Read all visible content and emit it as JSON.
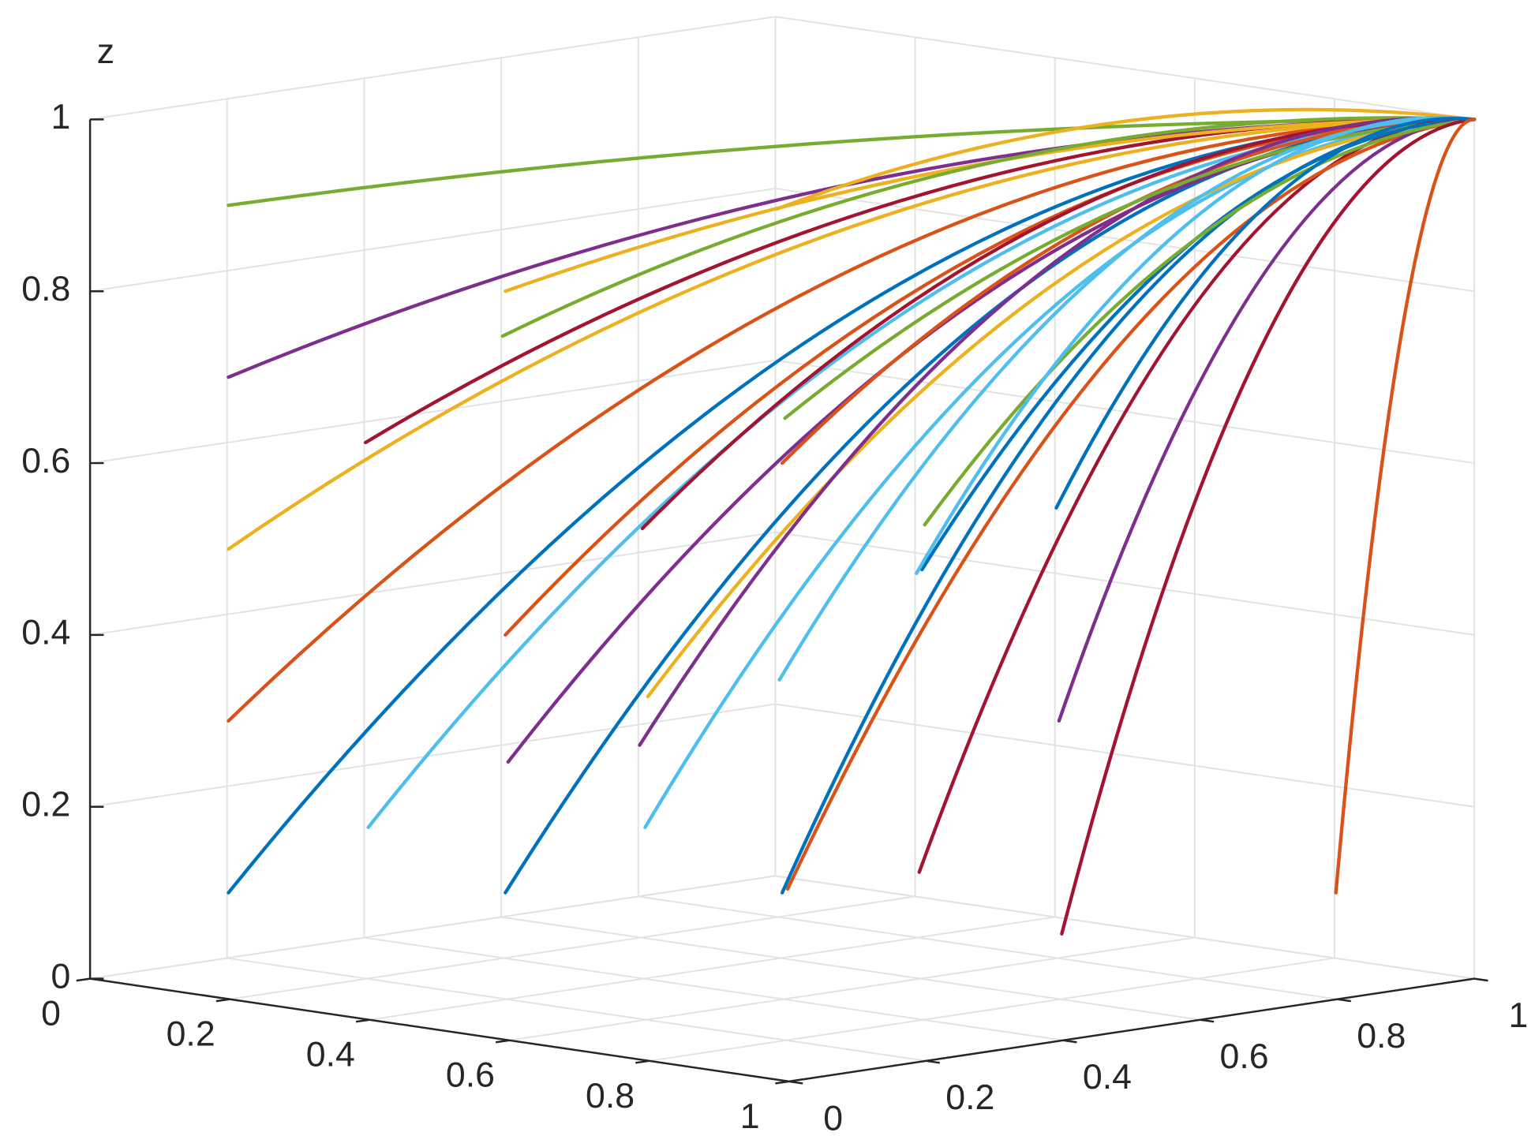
{
  "chart_data": {
    "type": "line3d",
    "zlabel": "z",
    "grid": true,
    "xlim": [
      0,
      1
    ],
    "ylim": [
      0,
      1
    ],
    "zlim": [
      0,
      1
    ],
    "xticks": [
      0,
      0.2,
      0.4,
      0.6,
      0.8,
      1
    ],
    "yticks": [
      0,
      0.2,
      0.4,
      0.6,
      0.8,
      1
    ],
    "zticks": [
      0,
      0.2,
      0.4,
      0.6,
      0.8,
      1
    ],
    "series": [
      {
        "color": "#0072BD",
        "x": [
          0.1,
          0.55,
          1
        ],
        "y": [
          0.1,
          0.55,
          1
        ],
        "z": [
          0.1,
          0.775,
          1
        ]
      },
      {
        "color": "#D95319",
        "x": [
          0.1,
          0.55,
          1
        ],
        "y": [
          0.1,
          0.55,
          1
        ],
        "z": [
          0.3,
          0.825,
          1
        ]
      },
      {
        "color": "#EDB120",
        "x": [
          0.1,
          0.55,
          1
        ],
        "y": [
          0.1,
          0.55,
          1
        ],
        "z": [
          0.5,
          0.875,
          1
        ]
      },
      {
        "color": "#7E2F8E",
        "x": [
          0.1,
          0.55,
          1
        ],
        "y": [
          0.1,
          0.55,
          1
        ],
        "z": [
          0.7,
          0.925,
          1
        ]
      },
      {
        "color": "#77AC30",
        "x": [
          0.1,
          0.55,
          1
        ],
        "y": [
          0.1,
          0.55,
          1
        ],
        "z": [
          0.9,
          0.975,
          1
        ]
      },
      {
        "color": "#4DBEEE",
        "x": [
          0.3,
          0.65,
          1
        ],
        "y": [
          0.1,
          0.55,
          1
        ],
        "z": [
          0.2,
          0.8,
          1
        ]
      },
      {
        "color": "#A2142F",
        "x": [
          0.1,
          0.55,
          1
        ],
        "y": [
          0.3,
          0.65,
          1
        ],
        "z": [
          0.6,
          0.9,
          1
        ]
      },
      {
        "color": "#0072BD",
        "x": [
          0.3,
          0.65,
          1
        ],
        "y": [
          0.3,
          0.65,
          1
        ],
        "z": [
          0.1,
          0.775,
          1
        ]
      },
      {
        "color": "#D95319",
        "x": [
          0.3,
          0.65,
          1
        ],
        "y": [
          0.3,
          0.65,
          1
        ],
        "z": [
          0.4,
          0.85,
          1
        ]
      },
      {
        "color": "#EDB120",
        "x": [
          0.3,
          0.65,
          1
        ],
        "y": [
          0.3,
          0.65,
          1
        ],
        "z": [
          0.8,
          0.95,
          1
        ]
      },
      {
        "color": "#7E2F8E",
        "x": [
          0.5,
          0.75,
          1
        ],
        "y": [
          0.1,
          0.55,
          1
        ],
        "z": [
          0.3,
          0.825,
          1
        ]
      },
      {
        "color": "#77AC30",
        "x": [
          0.1,
          0.55,
          1
        ],
        "y": [
          0.5,
          0.75,
          1
        ],
        "z": [
          0.7,
          0.925,
          1
        ]
      },
      {
        "color": "#4DBEEE",
        "x": [
          0.5,
          0.75,
          1
        ],
        "y": [
          0.3,
          0.65,
          1
        ],
        "z": [
          0.2,
          0.8,
          1
        ]
      },
      {
        "color": "#A2142F",
        "x": [
          0.3,
          0.65,
          1
        ],
        "y": [
          0.5,
          0.75,
          1
        ],
        "z": [
          0.5,
          0.875,
          1
        ]
      },
      {
        "color": "#0072BD",
        "x": [
          0.5,
          0.75,
          1
        ],
        "y": [
          0.5,
          0.75,
          1
        ],
        "z": [
          0.1,
          0.775,
          1
        ]
      },
      {
        "color": "#D95319",
        "x": [
          0.5,
          0.75,
          1
        ],
        "y": [
          0.5,
          0.75,
          1
        ],
        "z": [
          0.6,
          0.9,
          1
        ]
      },
      {
        "color": "#EDB120",
        "x": [
          0.7,
          0.85,
          1
        ],
        "y": [
          0.1,
          0.55,
          1
        ],
        "z": [
          0.4,
          0.85,
          1
        ]
      },
      {
        "color": "#7E2F8E",
        "x": [
          0.1,
          0.55,
          1
        ],
        "y": [
          0.7,
          0.85,
          1
        ],
        "z": [
          0.2,
          0.8,
          1
        ]
      },
      {
        "color": "#77AC30",
        "x": [
          0.7,
          0.85,
          1
        ],
        "y": [
          0.3,
          0.65,
          1
        ],
        "z": [
          0.7,
          0.925,
          1
        ]
      },
      {
        "color": "#4DBEEE",
        "x": [
          0.3,
          0.65,
          1
        ],
        "y": [
          0.7,
          0.85,
          1
        ],
        "z": [
          0.3,
          0.825,
          1
        ]
      },
      {
        "color": "#A2142F",
        "x": [
          0.5,
          0.75,
          1
        ],
        "y": [
          0.7,
          0.85,
          1
        ],
        "z": [
          0.1,
          0.775,
          1
        ]
      },
      {
        "color": "#0072BD",
        "x": [
          0.7,
          0.85,
          1
        ],
        "y": [
          0.5,
          0.75,
          1
        ],
        "z": [
          0.5,
          0.875,
          1
        ]
      },
      {
        "color": "#D95319",
        "x": [
          0.9,
          0.95,
          1
        ],
        "y": [
          0.1,
          0.55,
          1
        ],
        "z": [
          0.2,
          0.8,
          1
        ]
      },
      {
        "color": "#EDB120",
        "x": [
          0.1,
          0.55,
          1
        ],
        "y": [
          0.9,
          0.95,
          1
        ],
        "z": [
          0.8,
          0.95,
          1
        ]
      },
      {
        "color": "#7E2F8E",
        "x": [
          0.7,
          0.85,
          1
        ],
        "y": [
          0.7,
          0.85,
          1
        ],
        "z": [
          0.3,
          0.825,
          1
        ]
      },
      {
        "color": "#77AC30",
        "x": [
          0.9,
          0.95,
          1
        ],
        "y": [
          0.3,
          0.65,
          1
        ],
        "z": [
          0.6,
          0.9,
          1
        ]
      },
      {
        "color": "#4DBEEE",
        "x": [
          0.3,
          0.65,
          1
        ],
        "y": [
          0.9,
          0.95,
          1
        ],
        "z": [
          0.4,
          0.85,
          1
        ]
      },
      {
        "color": "#A2142F",
        "x": [
          0.9,
          0.95,
          1
        ],
        "y": [
          0.5,
          0.75,
          1
        ],
        "z": [
          0.1,
          0.775,
          1
        ]
      },
      {
        "color": "#0072BD",
        "x": [
          0.5,
          0.75,
          1
        ],
        "y": [
          0.9,
          0.95,
          1
        ],
        "z": [
          0.5,
          0.875,
          1
        ]
      },
      {
        "color": "#D95319",
        "x": [
          0.9,
          0.95,
          1
        ],
        "y": [
          0.9,
          0.95,
          1
        ],
        "z": [
          0.1,
          0.775,
          1
        ]
      }
    ]
  }
}
